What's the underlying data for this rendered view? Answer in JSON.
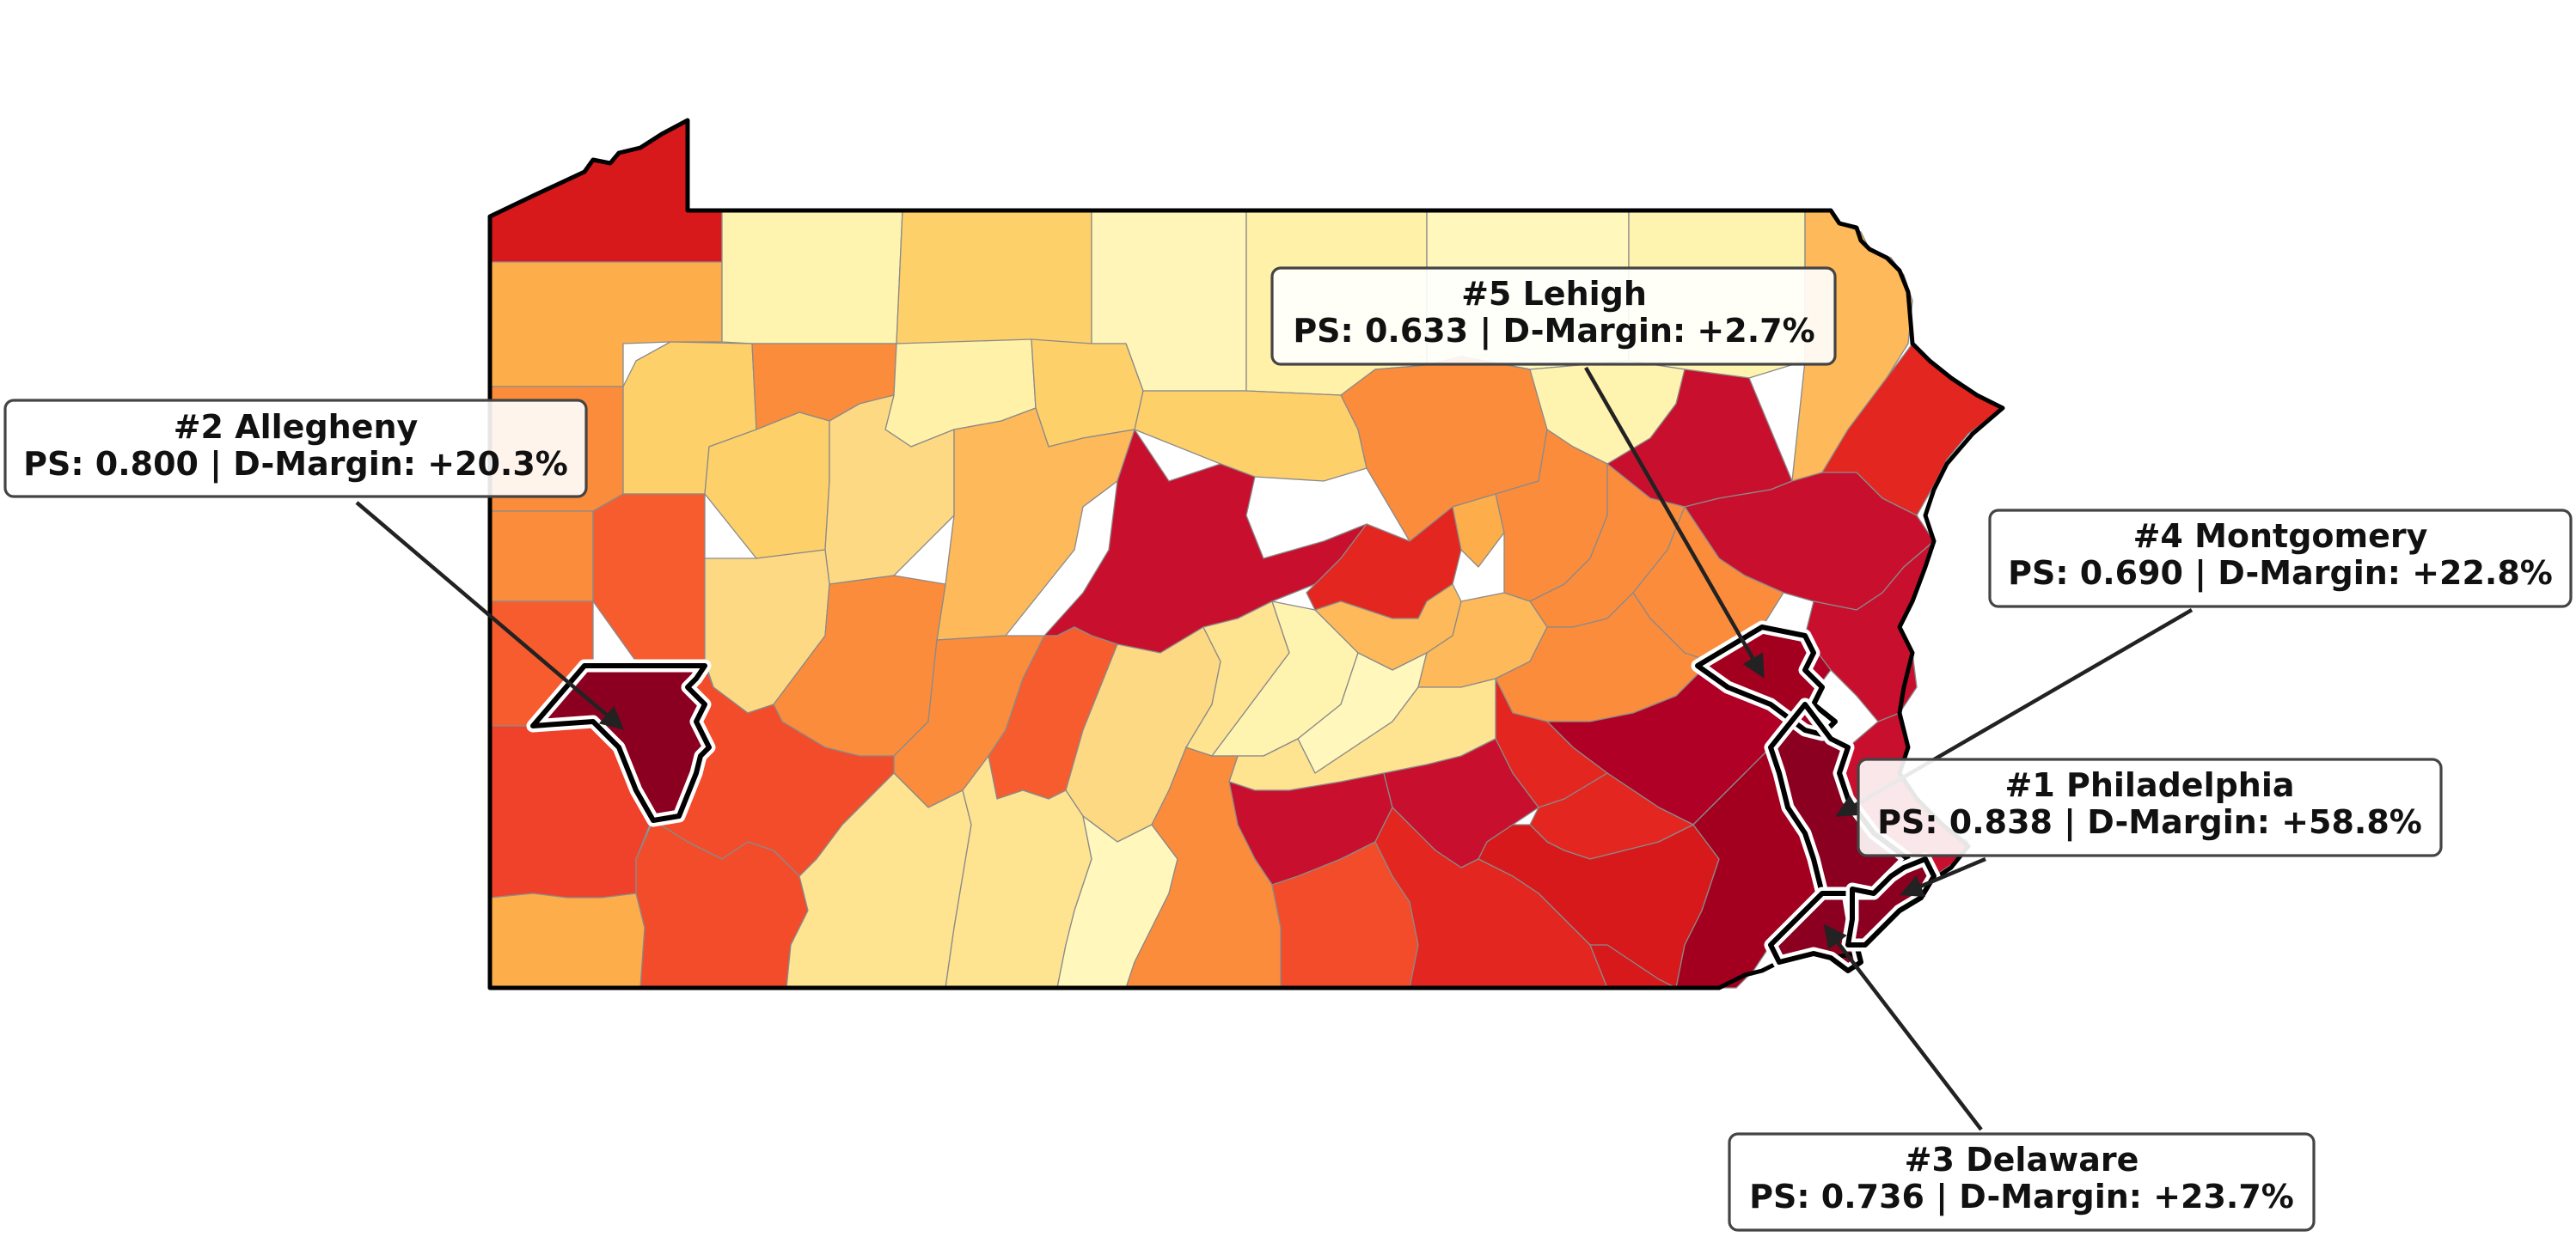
{
  "map": {
    "region": "Pennsylvania",
    "legend": "none",
    "colors": {
      "lightest": "#fff7bc",
      "light": "#fee391",
      "light_orange": "#fec965",
      "orange": "#fdae4b",
      "dark_orange": "#fb8c3c",
      "red_orange": "#f75c2e",
      "red": "#e3261f",
      "dark_red": "#c8102e",
      "darkest": "#8b0020",
      "outline": "#000000"
    },
    "highlighted_counties": [
      {
        "rank": "#1",
        "name": "Philadelphia",
        "ps": 0.838,
        "d_margin": "+58.8%",
        "title": "#1 Philadelphia",
        "stats": "PS: 0.838 | D-Margin: +58.8%"
      },
      {
        "rank": "#2",
        "name": "Allegheny",
        "ps": 0.8,
        "d_margin": "+20.3%",
        "title": "#2 Allegheny",
        "stats": "PS: 0.800 | D-Margin: +20.3%"
      },
      {
        "rank": "#3",
        "name": "Delaware",
        "ps": 0.736,
        "d_margin": "+23.7%",
        "title": "#3 Delaware",
        "stats": "PS: 0.736 | D-Margin: +23.7%"
      },
      {
        "rank": "#4",
        "name": "Montgomery",
        "ps": 0.69,
        "d_margin": "+22.8%",
        "title": "#4 Montgomery",
        "stats": "PS: 0.690 | D-Margin: +22.8%"
      },
      {
        "rank": "#5",
        "name": "Lehigh",
        "ps": 0.633,
        "d_margin": "+2.7%",
        "title": "#5 Lehigh",
        "stats": "PS: 0.633 | D-Margin: +2.7%"
      }
    ]
  }
}
